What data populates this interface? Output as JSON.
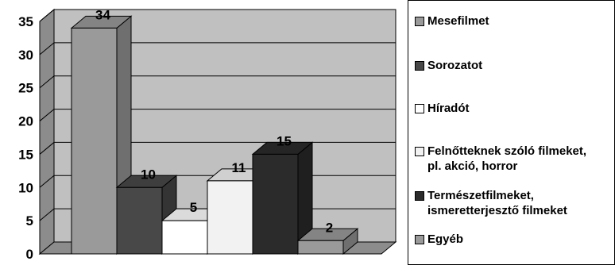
{
  "chart_data": {
    "type": "bar",
    "categories": [
      "Mesefilmet",
      "Sorozatot",
      "Híradót",
      "Felnőtteknek szóló filmeket, pl. akció, horror",
      "Természetfilmeket, ismeretterjesztő filmeket",
      "Egyéb"
    ],
    "values": [
      34,
      10,
      5,
      11,
      15,
      2
    ],
    "ylim": [
      0,
      35
    ],
    "yticks": [
      "0",
      "5",
      "10",
      "15",
      "20",
      "25",
      "30",
      "35"
    ],
    "grid": true,
    "three_d": true,
    "legend_position": "right",
    "colors": [
      "#9a9a9a",
      "#484848",
      "#ffffff",
      "#f2f2f2",
      "#2b2b2b",
      "#9a9a9a"
    ],
    "plot_background": "#c0c0c0"
  },
  "legend": {
    "items": [
      {
        "label_lines": [
          "Mesefilmet"
        ]
      },
      {
        "label_lines": [
          "Sorozatot"
        ]
      },
      {
        "label_lines": [
          "Híradót"
        ]
      },
      {
        "label_lines": [
          "Felnőtteknek szóló filmeket,",
          "pl. akció, horror"
        ]
      },
      {
        "label_lines": [
          "Természetfilmeket,",
          "ismeretterjesztő filmeket"
        ]
      },
      {
        "label_lines": [
          "Egyéb"
        ]
      }
    ]
  }
}
